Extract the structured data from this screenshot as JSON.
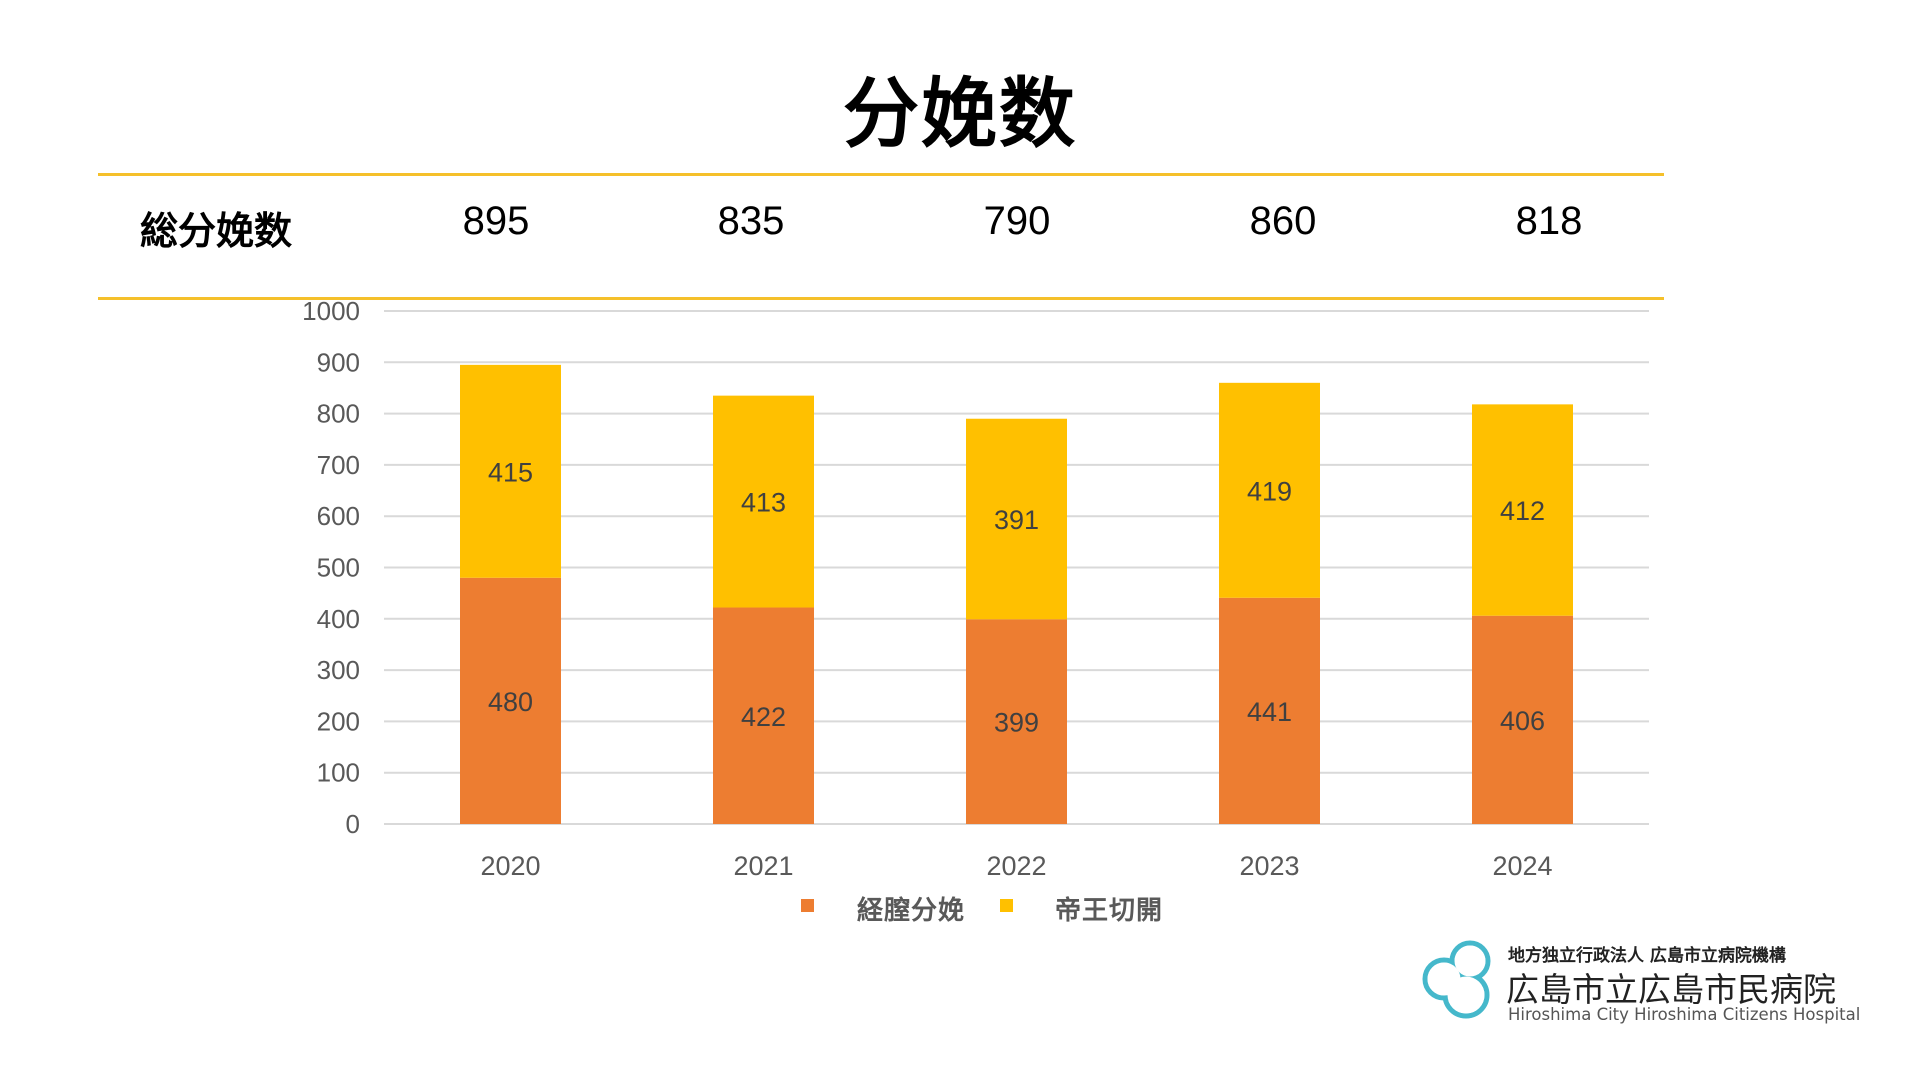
{
  "title": "分娩数",
  "summary": {
    "label": "総分娩数",
    "totals": [
      "895",
      "835",
      "790",
      "860",
      "818"
    ]
  },
  "colors": {
    "vaginal": "#ED7D31",
    "cesarean": "#FFC000",
    "rule": "#F5C02A",
    "grid": "#D9D9D9",
    "axis_text": "#595959",
    "data_label": "#404040",
    "logo": "#45B8CB"
  },
  "chart_data": {
    "type": "bar",
    "stacked": true,
    "title": "分娩数",
    "xlabel": "",
    "ylabel": "",
    "categories": [
      "2020",
      "2021",
      "2022",
      "2023",
      "2024"
    ],
    "series": [
      {
        "name": "経膣分娩",
        "values": [
          480,
          422,
          399,
          441,
          406
        ]
      },
      {
        "name": "帝王切開",
        "values": [
          415,
          413,
          391,
          419,
          412
        ]
      }
    ],
    "ylim": [
      0,
      1000
    ],
    "yticks": [
      0,
      100,
      200,
      300,
      400,
      500,
      600,
      700,
      800,
      900,
      1000
    ],
    "grid": true,
    "legend": "bottom"
  },
  "legend": {
    "items": [
      {
        "label": "経膣分娩"
      },
      {
        "label": "帝王切開"
      }
    ]
  },
  "logo": {
    "subtitle": "地方独立行政法人 広島市立病院機構",
    "name": "広島市立広島市民病院",
    "english": "Hiroshima City Hiroshima Citizens Hospital"
  }
}
